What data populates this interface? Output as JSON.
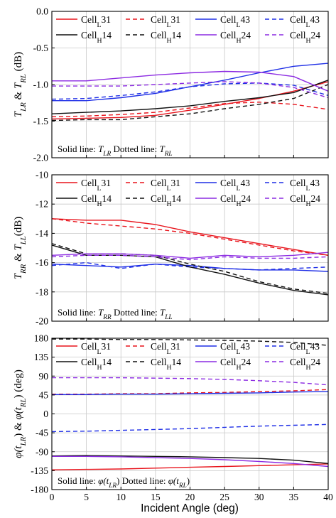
{
  "figure": {
    "xlabel": "Incident Angle (deg)"
  },
  "chart_data": [
    {
      "type": "line",
      "title": "",
      "ylabel_parts": [
        {
          "t": "T",
          "i": true
        },
        {
          "t": "LR",
          "i": true,
          "sub": true
        },
        {
          "t": " & ",
          "i": false
        },
        {
          "t": "T",
          "i": true
        },
        {
          "t": "RL",
          "i": true,
          "sub": true
        },
        {
          "t": " (dB)",
          "i": false
        }
      ],
      "xlim": [
        0,
        40
      ],
      "ylim": [
        -2.0,
        0.0
      ],
      "xticks": [
        0,
        5,
        10,
        15,
        20,
        25,
        30,
        35,
        40
      ],
      "yticks": [
        -2.0,
        -1.5,
        -1.0,
        -0.5,
        0.0
      ],
      "ytick_labels": [
        "-2.0",
        "-1.5",
        "-1.0",
        "-0.5",
        "0.0"
      ],
      "grid": true,
      "legend_position": "top",
      "note_parts": [
        {
          "t": "Solid line: ",
          "i": false
        },
        {
          "t": "T",
          "i": true
        },
        {
          "t": "LR",
          "i": true,
          "sub": true
        },
        {
          "t": "   Dotted line: ",
          "i": false
        },
        {
          "t": "T",
          "i": true
        },
        {
          "t": "RL",
          "i": true,
          "sub": true
        }
      ],
      "x": [
        0,
        5,
        10,
        15,
        20,
        25,
        30,
        35,
        40
      ],
      "series": [
        {
          "name": "CellL31",
          "label_main": "Cell",
          "label_sub": "L",
          "label_num": "31",
          "color": "#e8141c",
          "dash": "solid",
          "values": [
            -1.47,
            -1.46,
            -1.45,
            -1.42,
            -1.35,
            -1.27,
            -1.19,
            -1.09,
            -0.96
          ]
        },
        {
          "name": "CellL31",
          "label_main": "Cell",
          "label_sub": "L",
          "label_num": "31",
          "color": "#e8141c",
          "dash": "dashed",
          "values": [
            -1.44,
            -1.43,
            -1.41,
            -1.38,
            -1.32,
            -1.26,
            -1.24,
            -1.27,
            -1.34
          ]
        },
        {
          "name": "CellL43",
          "label_main": "Cell",
          "label_sub": "L",
          "label_num": "43",
          "color": "#1e2ee6",
          "dash": "solid",
          "values": [
            -1.22,
            -1.22,
            -1.18,
            -1.12,
            -1.03,
            -0.94,
            -0.84,
            -0.75,
            -0.71
          ]
        },
        {
          "name": "CellL43",
          "label_main": "Cell",
          "label_sub": "L",
          "label_num": "43",
          "color": "#1e2ee6",
          "dash": "dashed",
          "values": [
            -1.2,
            -1.19,
            -1.15,
            -1.1,
            -1.03,
            -0.99,
            -0.98,
            -1.01,
            -1.15
          ]
        },
        {
          "name": "CellH14",
          "label_main": "Cell",
          "label_sub": "H",
          "label_num": "14",
          "color": "#111111",
          "dash": "solid",
          "values": [
            -1.4,
            -1.38,
            -1.36,
            -1.33,
            -1.29,
            -1.23,
            -1.18,
            -1.11,
            -0.94
          ]
        },
        {
          "name": "CellH14",
          "label_main": "Cell",
          "label_sub": "H",
          "label_num": "14",
          "color": "#111111",
          "dash": "dashed",
          "values": [
            -1.49,
            -1.48,
            -1.48,
            -1.44,
            -1.4,
            -1.33,
            -1.27,
            -1.19,
            -1.0
          ]
        },
        {
          "name": "CellH24",
          "label_main": "Cell",
          "label_sub": "H",
          "label_num": "24",
          "color": "#8c2be2",
          "dash": "solid",
          "values": [
            -0.95,
            -0.95,
            -0.91,
            -0.87,
            -0.84,
            -0.82,
            -0.83,
            -0.89,
            -1.09
          ]
        },
        {
          "name": "CellH24",
          "label_main": "Cell",
          "label_sub": "H",
          "label_num": "24",
          "color": "#8c2be2",
          "dash": "dashed",
          "values": [
            -1.02,
            -1.02,
            -1.02,
            -1.0,
            -0.98,
            -0.96,
            -0.98,
            -1.04,
            -1.18
          ]
        }
      ]
    },
    {
      "type": "line",
      "title": "",
      "ylabel_parts": [
        {
          "t": "T",
          "i": true
        },
        {
          "t": "RR",
          "i": true,
          "sub": true
        },
        {
          "t": " & ",
          "i": false
        },
        {
          "t": "T",
          "i": true
        },
        {
          "t": "LL",
          "i": true,
          "sub": true
        },
        {
          "t": "(dB)",
          "i": false
        }
      ],
      "xlim": [
        0,
        40
      ],
      "ylim": [
        -20,
        -10
      ],
      "xticks": [
        0,
        5,
        10,
        15,
        20,
        25,
        30,
        35,
        40
      ],
      "yticks": [
        -20,
        -18,
        -16,
        -14,
        -12,
        -10
      ],
      "ytick_labels": [
        "-20",
        "-18",
        "-16",
        "-14",
        "-12",
        "-10"
      ],
      "grid": true,
      "legend_position": "top",
      "note_parts": [
        {
          "t": "Solid line: ",
          "i": false
        },
        {
          "t": "T",
          "i": true
        },
        {
          "t": "RR",
          "i": true,
          "sub": true
        },
        {
          "t": "   Dotted line: ",
          "i": false
        },
        {
          "t": "T",
          "i": true
        },
        {
          "t": "LL",
          "i": true,
          "sub": true
        }
      ],
      "x": [
        0,
        5,
        10,
        15,
        20,
        25,
        30,
        35,
        40
      ],
      "series": [
        {
          "name": "CellL31",
          "label_main": "Cell",
          "label_sub": "L",
          "label_num": "31",
          "color": "#e8141c",
          "dash": "solid",
          "values": [
            -13.0,
            -13.1,
            -13.1,
            -13.4,
            -13.9,
            -14.3,
            -14.7,
            -15.1,
            -15.5
          ]
        },
        {
          "name": "CellL31",
          "label_main": "Cell",
          "label_sub": "L",
          "label_num": "31",
          "color": "#e8141c",
          "dash": "dashed",
          "values": [
            -13.0,
            -13.3,
            -13.5,
            -13.7,
            -14.0,
            -14.4,
            -14.8,
            -15.2,
            -15.5
          ]
        },
        {
          "name": "CellL43",
          "label_main": "Cell",
          "label_sub": "L",
          "label_num": "43",
          "color": "#1e2ee6",
          "dash": "solid",
          "values": [
            -16.1,
            -16.2,
            -16.3,
            -16.1,
            -16.2,
            -16.4,
            -16.5,
            -16.5,
            -16.6
          ]
        },
        {
          "name": "CellL43",
          "label_main": "Cell",
          "label_sub": "L",
          "label_num": "43",
          "color": "#1e2ee6",
          "dash": "dashed",
          "values": [
            -16.2,
            -16.0,
            -16.4,
            -16.1,
            -16.3,
            -16.4,
            -16.5,
            -16.4,
            -16.3
          ]
        },
        {
          "name": "CellH14",
          "label_main": "Cell",
          "label_sub": "H",
          "label_num": "14",
          "color": "#111111",
          "dash": "solid",
          "values": [
            -14.8,
            -15.5,
            -15.5,
            -15.6,
            -16.3,
            -16.8,
            -17.4,
            -17.9,
            -18.2
          ]
        },
        {
          "name": "CellH14",
          "label_main": "Cell",
          "label_sub": "H",
          "label_num": "14",
          "color": "#111111",
          "dash": "dashed",
          "values": [
            -14.7,
            -15.4,
            -15.4,
            -15.5,
            -16.1,
            -16.6,
            -17.3,
            -17.8,
            -18.1
          ]
        },
        {
          "name": "CellH24",
          "label_main": "Cell",
          "label_sub": "H",
          "label_num": "24",
          "color": "#8c2be2",
          "dash": "solid",
          "values": [
            -15.5,
            -15.4,
            -15.4,
            -15.5,
            -15.7,
            -15.5,
            -15.6,
            -15.5,
            -15.3
          ]
        },
        {
          "name": "CellH24",
          "label_main": "Cell",
          "label_sub": "H",
          "label_num": "24",
          "color": "#8c2be2",
          "dash": "dashed",
          "values": [
            -15.6,
            -15.5,
            -15.5,
            -15.6,
            -15.8,
            -15.6,
            -15.7,
            -15.7,
            -15.6
          ]
        }
      ]
    },
    {
      "type": "line",
      "title": "",
      "ylabel_parts": [
        {
          "t": "φ(",
          "i": true
        },
        {
          "t": "t",
          "i": true
        },
        {
          "t": "LR",
          "i": true,
          "sub": true
        },
        {
          "t": ")",
          "i": false
        },
        {
          "t": " & ",
          "i": false
        },
        {
          "t": "φ(",
          "i": true
        },
        {
          "t": "t",
          "i": true
        },
        {
          "t": "RL",
          "i": true,
          "sub": true
        },
        {
          "t": ")",
          "i": false
        },
        {
          "t": " (deg)",
          "i": false
        }
      ],
      "xlim": [
        0,
        40
      ],
      "ylim": [
        -180,
        180
      ],
      "xticks": [
        0,
        5,
        10,
        15,
        20,
        25,
        30,
        35,
        40
      ],
      "yticks": [
        -180,
        -135,
        -90,
        -45,
        0,
        45,
        90,
        135,
        180
      ],
      "ytick_labels": [
        "-180",
        "-135",
        "-90",
        "-45",
        "0",
        "45",
        "90",
        "135",
        "180"
      ],
      "grid": true,
      "legend_position": "top",
      "note_parts": [
        {
          "t": "Solid line: ",
          "i": false
        },
        {
          "t": "φ(",
          "i": true
        },
        {
          "t": "t",
          "i": true
        },
        {
          "t": "LR",
          "i": true,
          "sub": true
        },
        {
          "t": ")",
          "i": false
        },
        {
          "t": "   Dotted line: ",
          "i": false
        },
        {
          "t": "φ(",
          "i": true
        },
        {
          "t": "t",
          "i": true
        },
        {
          "t": "RL",
          "i": true,
          "sub": true
        },
        {
          "t": ")",
          "i": false
        }
      ],
      "x": [
        0,
        5,
        10,
        15,
        20,
        25,
        30,
        35,
        40
      ],
      "series": [
        {
          "name": "CellL31",
          "label_main": "Cell",
          "label_sub": "L",
          "label_num": "31",
          "color": "#e8141c",
          "dash": "solid",
          "values": [
            -133,
            -132,
            -131,
            -129,
            -127,
            -125,
            -123,
            -121,
            -119
          ]
        },
        {
          "name": "CellL31",
          "label_main": "Cell",
          "label_sub": "L",
          "label_num": "31",
          "color": "#e8141c",
          "dash": "dashed",
          "values": [
            47,
            47,
            48,
            48,
            50,
            51,
            53,
            55,
            58
          ]
        },
        {
          "name": "CellL43",
          "label_main": "Cell",
          "label_sub": "L",
          "label_num": "43",
          "color": "#1e2ee6",
          "dash": "solid",
          "values": [
            46,
            46,
            47,
            47,
            48,
            49,
            50,
            52,
            53
          ]
        },
        {
          "name": "CellL43",
          "label_main": "Cell",
          "label_sub": "L",
          "label_num": "43",
          "color": "#1e2ee6",
          "dash": "dashed",
          "values": [
            -42,
            -41,
            -39,
            -37,
            -35,
            -32,
            -29,
            -27,
            -25
          ]
        },
        {
          "name": "CellH14",
          "label_main": "Cell",
          "label_sub": "H",
          "label_num": "14",
          "color": "#111111",
          "dash": "solid",
          "values": [
            -100,
            -99,
            -100,
            -101,
            -102,
            -104,
            -106,
            -110,
            -118
          ]
        },
        {
          "name": "CellH14",
          "label_main": "Cell",
          "label_sub": "H",
          "label_num": "14",
          "color": "#111111",
          "dash": "dashed",
          "values": [
            178,
            178,
            177,
            177,
            176,
            175,
            173,
            170,
            163
          ]
        },
        {
          "name": "CellH24",
          "label_main": "Cell",
          "label_sub": "H",
          "label_num": "24",
          "color": "#8c2be2",
          "dash": "solid",
          "values": [
            -101,
            -101,
            -102,
            -104,
            -106,
            -109,
            -113,
            -118,
            -125
          ]
        },
        {
          "name": "CellH24",
          "label_main": "Cell",
          "label_sub": "H",
          "label_num": "24",
          "color": "#8c2be2",
          "dash": "dashed",
          "values": [
            86,
            86,
            86,
            85,
            84,
            82,
            79,
            75,
            69
          ]
        }
      ]
    }
  ]
}
